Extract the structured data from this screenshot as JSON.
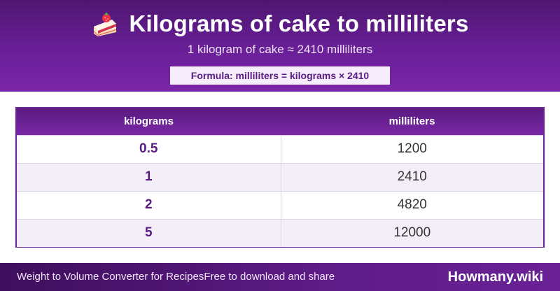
{
  "header": {
    "icon": "cake-slice-icon",
    "title": "Kilograms of cake to milliliters",
    "subtitle": "1 kilogram of cake ≈ 2410 milliliters",
    "formula": "Formula: milliliters = kilograms × 2410"
  },
  "table": {
    "columns": [
      "kilograms",
      "milliliters"
    ],
    "rows": [
      {
        "kilograms": "0.5",
        "milliliters": "1200"
      },
      {
        "kilograms": "1",
        "milliliters": "2410"
      },
      {
        "kilograms": "2",
        "milliliters": "4820"
      },
      {
        "kilograms": "5",
        "milliliters": "12000"
      }
    ]
  },
  "footer": {
    "left_text": "Weight to Volume Converter for Recipes",
    "left_subtext": "Free to download and share",
    "brand": "Howmany.wiki"
  },
  "colors": {
    "brand_purple": "#6a1f98",
    "accent_text": "#5a1b83",
    "row_alt": "#f4eef9"
  }
}
